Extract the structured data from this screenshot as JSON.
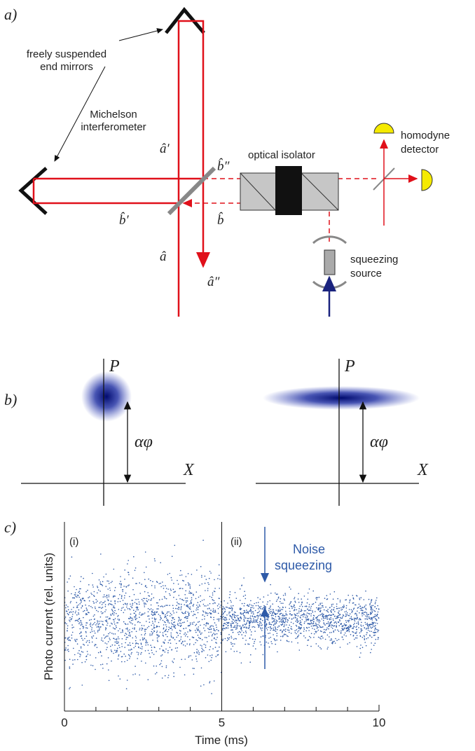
{
  "panel_a": {
    "label": "a)",
    "mirrors": [
      "freely suspended",
      "end mirrors"
    ],
    "interferometer": [
      "Michelson",
      "interferometer"
    ],
    "isolator": "optical isolator",
    "detector": [
      "homodyne",
      "detector"
    ],
    "source": [
      "squeezing",
      "source"
    ],
    "operators": {
      "a_prime": "â′",
      "b_dprime": "b̂″",
      "b_prime": "b̂′",
      "b": "b̂",
      "a": "â",
      "a_dprime": "â″"
    }
  },
  "panel_b": {
    "label": "b)",
    "p_axis": "P",
    "x_axis": "X",
    "displacement": "αφ"
  },
  "chart_data": {
    "type": "scatter",
    "label": "c)",
    "xlabel": "Time (ms)",
    "ylabel": "Photo current (rel. units)",
    "xlim": [
      0,
      10
    ],
    "xticks": [
      0,
      5,
      10
    ],
    "annotations": [
      "(i)",
      "(ii)",
      "Noise",
      "squeezing"
    ]
  }
}
